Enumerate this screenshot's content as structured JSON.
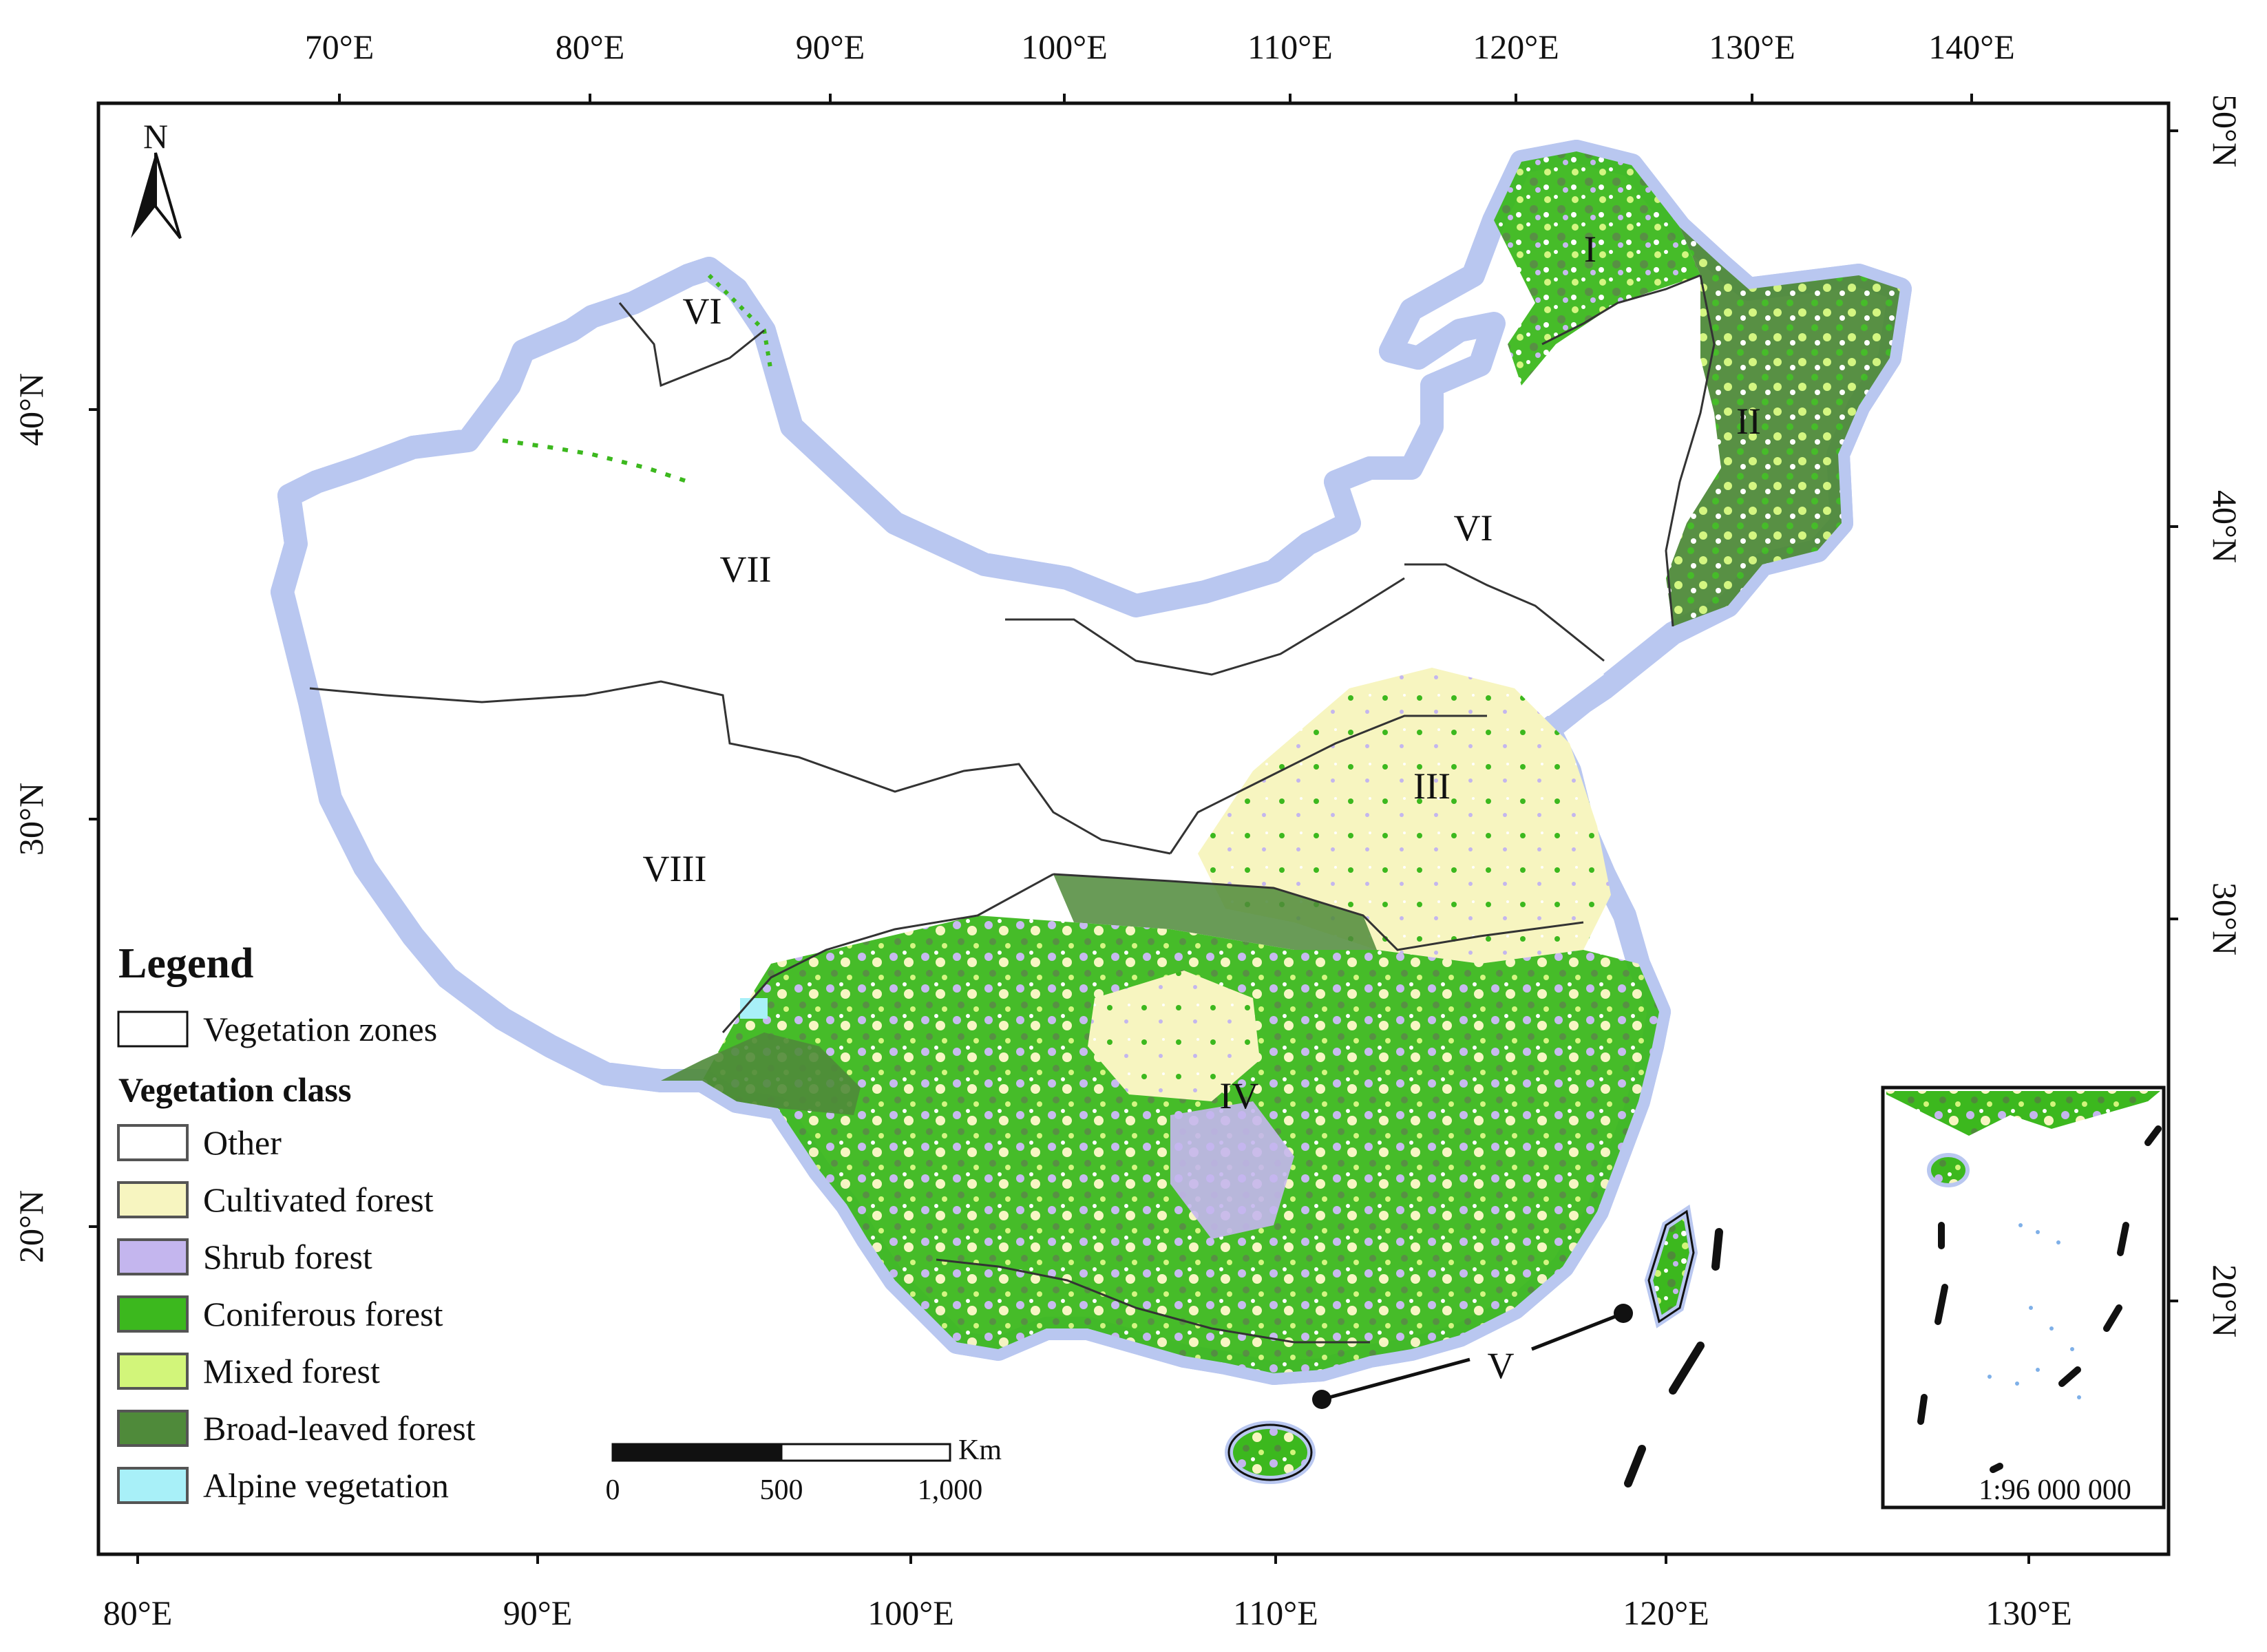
{
  "map": {
    "top_longitude_ticks": [
      "70°E",
      "80°E",
      "90°E",
      "100°E",
      "110°E",
      "120°E",
      "130°E",
      "140°E"
    ],
    "bottom_longitude_ticks": [
      "80°E",
      "90°E",
      "100°E",
      "110°E",
      "120°E",
      "130°E"
    ],
    "left_latitude_ticks": [
      "40°N",
      "30°N",
      "20°N"
    ],
    "right_latitude_ticks": [
      "50°N",
      "40°N",
      "30°N",
      "20°N"
    ],
    "north_arrow_label": "N",
    "zone_labels": [
      "I",
      "II",
      "III",
      "IV",
      "V",
      "VI",
      "VI",
      "VII",
      "VIII"
    ]
  },
  "legend": {
    "title": "Legend",
    "zones_item": "Vegetation zones",
    "class_title": "Vegetation class",
    "classes": [
      {
        "label": "Other",
        "color": "#ffffff"
      },
      {
        "label": "Cultivated forest",
        "color": "#f7f5c0"
      },
      {
        "label": "Shrub forest",
        "color": "#c4b6ee"
      },
      {
        "label": "Coniferous forest",
        "color": "#3cb81e"
      },
      {
        "label": "Mixed forest",
        "color": "#d2f57a"
      },
      {
        "label": "Broad-leaved forest",
        "color": "#4f8a3a"
      },
      {
        "label": "Alpine vegetation",
        "color": "#a8f0f8"
      }
    ]
  },
  "scale_bar": {
    "unit": "Km",
    "labels": [
      "0",
      "500",
      "1,000"
    ]
  },
  "inset": {
    "scale_text": "1:96 000 000"
  }
}
